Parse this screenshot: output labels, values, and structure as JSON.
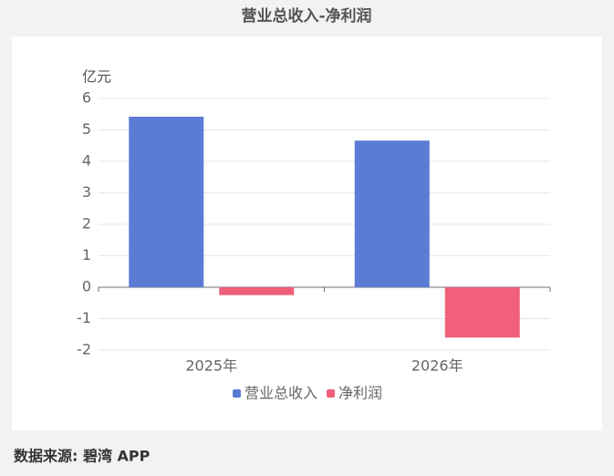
{
  "chart_data": {
    "type": "bar",
    "title": "营业总收入-净利润",
    "y_label": "亿元",
    "categories": [
      "2025年",
      "2026年"
    ],
    "series": [
      {
        "name": "营业总收入",
        "color": "#5b7bd5",
        "values": [
          5.42,
          4.66
        ]
      },
      {
        "name": "净利润",
        "color": "#f0607a",
        "values": [
          -0.25,
          -1.6
        ]
      }
    ],
    "ylim": [
      -2,
      6
    ],
    "yticks": [
      -2,
      -1,
      0,
      1,
      2,
      3,
      4,
      5,
      6
    ],
    "grid": true
  },
  "source": "数据来源: 碧湾 APP"
}
